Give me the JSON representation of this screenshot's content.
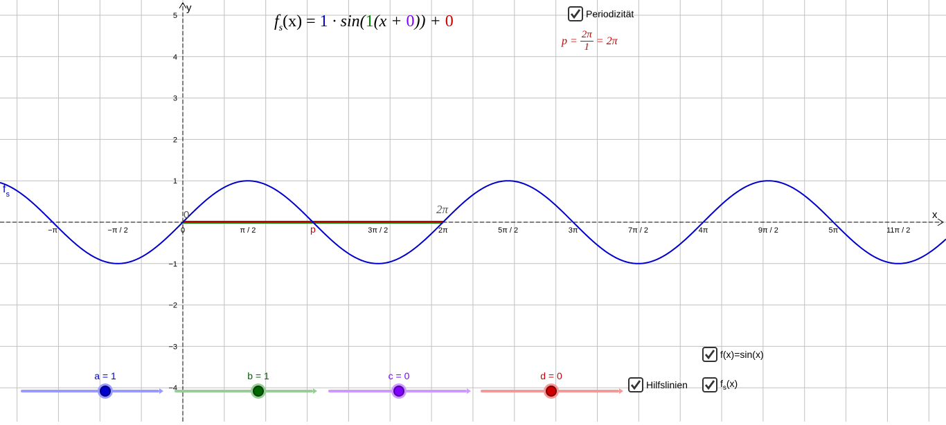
{
  "axes": {
    "x_label": "x",
    "y_label": "y",
    "origin_label": "0",
    "x_tick_labels": [
      "−π",
      "−π / 2",
      "0",
      "π / 2",
      "p",
      "3π / 2",
      "2π",
      "5π / 2",
      "3π",
      "7π / 2",
      "4π",
      "9π / 2",
      "5π",
      "11π / 2"
    ],
    "y_tick_labels": [
      "5",
      "4",
      "3",
      "2",
      "1",
      "−1",
      "−2",
      "−3",
      "−4"
    ]
  },
  "formula": {
    "prefix": "f",
    "sub": "s",
    "arg": "(x) = ",
    "a": "1",
    "mid1": " · sin(",
    "b": "1",
    "mid2": "(x + ",
    "c": "0",
    "mid3": ")) + ",
    "d": "0"
  },
  "period_formula": {
    "lhs": "p =",
    "num": "2π",
    "den": "1",
    "rhs": "= 2π"
  },
  "curve_label": {
    "name": "f",
    "sub": "s"
  },
  "period_marker_label": "2π",
  "period_origin_label": "0",
  "checkboxes": {
    "periodizitaet": {
      "label": "Periodizität",
      "checked": true
    },
    "f_sin": {
      "label": "f(x)=sin(x)",
      "checked": true
    },
    "hilfslinien": {
      "label": "Hilfslinien",
      "checked": true
    },
    "fs": {
      "label": "f",
      "sub": "s",
      "suffix": "(x)",
      "checked": true
    }
  },
  "sliders": [
    {
      "name": "a",
      "label": "a = 1",
      "value": 1,
      "color": "#0000cc",
      "track": "#9999ff"
    },
    {
      "name": "b",
      "label": "b = 1",
      "value": 1,
      "color": "#006600",
      "track": "#99cc99"
    },
    {
      "name": "c",
      "label": "c = 0",
      "value": 0,
      "color": "#7f00ff",
      "track": "#cc99ff"
    },
    {
      "name": "d",
      "label": "d = 0",
      "value": 0,
      "color": "#cc0000",
      "track": "#f29999"
    }
  ],
  "colors": {
    "curve": "#0000cc",
    "period_line": "#cc0000",
    "period_line2": "#008000",
    "grid": "#c0c0c0",
    "axis": "#000000"
  }
}
